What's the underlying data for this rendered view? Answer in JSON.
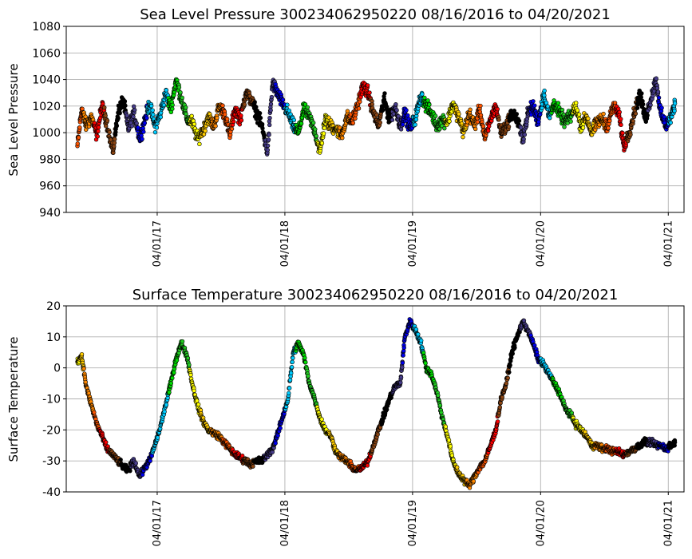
{
  "chart_data": [
    {
      "type": "scatter",
      "title": "Sea Level Pressure 300234062950220  08/16/2016 to 04/20/2021",
      "ylabel": "Sea Level Pressure",
      "xlabel": "",
      "ylim": [
        940,
        1080
      ],
      "yticks": [
        940,
        960,
        980,
        1000,
        1020,
        1040,
        1060,
        1080
      ],
      "xlim": [
        "2016-07-15",
        "2021-05-16"
      ],
      "xticks": [
        "2017-04-01",
        "2018-04-01",
        "2019-04-01",
        "2020-04-01",
        "2021-04-01"
      ],
      "xticklabels": [
        "04/01/17",
        "04/01/18",
        "04/01/19",
        "04/01/20",
        "04/01/21"
      ],
      "grid": true,
      "legend": "none",
      "color_note": "points colored by month",
      "month_colors": [
        "#0000ee",
        "#00ccff",
        "#00dd00",
        "#22cc22",
        "#ffff00",
        "#ffcc00",
        "#ff8800",
        "#ff5500",
        "#ff0000",
        "#8b4513",
        "#000000",
        "#483d8b"
      ],
      "series": [
        {
          "name": "",
          "x": [
            "2016-08-16",
            "2016-08-28",
            "2016-09-10",
            "2016-09-25",
            "2016-10-10",
            "2016-10-25",
            "2016-11-08",
            "2016-11-25",
            "2016-12-10",
            "2016-12-25",
            "2017-01-08",
            "2017-01-25",
            "2017-02-10",
            "2017-02-25",
            "2017-03-10",
            "2017-03-25",
            "2017-04-08",
            "2017-04-25",
            "2017-05-10",
            "2017-05-25",
            "2017-06-10",
            "2017-06-25",
            "2017-07-10",
            "2017-07-25",
            "2017-08-10",
            "2017-08-25",
            "2017-09-10",
            "2017-09-25",
            "2017-10-10",
            "2017-10-25",
            "2017-11-10",
            "2017-11-25",
            "2017-12-10",
            "2017-12-25",
            "2018-01-10",
            "2018-01-25",
            "2018-02-10",
            "2018-02-25",
            "2018-03-10",
            "2018-03-25",
            "2018-04-10",
            "2018-04-25",
            "2018-05-10",
            "2018-05-25",
            "2018-06-10",
            "2018-06-25",
            "2018-07-10",
            "2018-07-25",
            "2018-08-10",
            "2018-08-25",
            "2018-09-10",
            "2018-09-25",
            "2018-10-10",
            "2018-10-25",
            "2018-11-10",
            "2018-11-25",
            "2018-12-10",
            "2018-12-25",
            "2019-01-10",
            "2019-01-25",
            "2019-02-10",
            "2019-02-25",
            "2019-03-10",
            "2019-03-25",
            "2019-04-10",
            "2019-04-25",
            "2019-05-10",
            "2019-05-25",
            "2019-06-10",
            "2019-06-25",
            "2019-07-10",
            "2019-07-25",
            "2019-08-10",
            "2019-08-25",
            "2019-09-10",
            "2019-09-25",
            "2019-10-10",
            "2019-10-25",
            "2019-11-10",
            "2019-11-25",
            "2019-12-10",
            "2019-12-25",
            "2020-01-10",
            "2020-01-25",
            "2020-02-10",
            "2020-02-25",
            "2020-03-10",
            "2020-03-25",
            "2020-04-10",
            "2020-04-25",
            "2020-05-10",
            "2020-05-25",
            "2020-06-10",
            "2020-06-25",
            "2020-07-10",
            "2020-07-25",
            "2020-08-10",
            "2020-08-25",
            "2020-09-10",
            "2020-09-25",
            "2020-10-10",
            "2020-10-25",
            "2020-11-10",
            "2020-11-25",
            "2020-12-10",
            "2020-12-25",
            "2021-01-10",
            "2021-01-25",
            "2021-02-10",
            "2021-02-25",
            "2021-03-10",
            "2021-03-25",
            "2021-04-10",
            "2021-04-20"
          ],
          "y": [
            990,
            1018,
            1005,
            1012,
            998,
            1020,
            1008,
            985,
            1015,
            1025,
            1003,
            1015,
            995,
            1010,
            1022,
            1005,
            1012,
            1030,
            1018,
            1040,
            1025,
            1010,
            1008,
            995,
            1002,
            1012,
            1005,
            1020,
            1015,
            998,
            1018,
            1010,
            1030,
            1025,
            1015,
            1005,
            985,
            1038,
            1030,
            1022,
            1015,
            1005,
            1000,
            1018,
            1012,
            1002,
            985,
            1010,
            1005,
            1003,
            998,
            1012,
            1008,
            1020,
            1035,
            1030,
            1015,
            1005,
            1025,
            1010,
            1020,
            1005,
            1015,
            1003,
            1012,
            1028,
            1020,
            1015,
            1005,
            1010,
            1008,
            1022,
            1012,
            1000,
            1015,
            1005,
            1018,
            995,
            1010,
            1020,
            1000,
            1005,
            1015,
            1010,
            995,
            1015,
            1020,
            1008,
            1030,
            1012,
            1022,
            1015,
            1008,
            1012,
            1020,
            1005,
            1012,
            1000,
            1008,
            1010,
            1005,
            1020,
            1015,
            990,
            1000,
            1015,
            1030,
            1010,
            1025,
            1040,
            1015,
            1005,
            1012,
            1022
          ],
          "month_color_index": [
            7,
            7,
            6,
            6,
            8,
            8,
            9,
            9,
            10,
            10,
            11,
            11,
            0,
            0,
            1,
            1,
            1,
            1,
            2,
            2,
            3,
            3,
            4,
            4,
            5,
            5,
            6,
            6,
            7,
            7,
            8,
            8,
            9,
            9,
            10,
            10,
            11,
            11,
            0,
            0,
            1,
            1,
            2,
            2,
            3,
            3,
            4,
            4,
            5,
            5,
            6,
            6,
            7,
            7,
            8,
            8,
            9,
            9,
            10,
            10,
            11,
            11,
            0,
            0,
            1,
            1,
            2,
            2,
            3,
            3,
            4,
            4,
            5,
            5,
            6,
            6,
            7,
            7,
            8,
            8,
            9,
            9,
            10,
            10,
            11,
            11,
            0,
            0,
            1,
            1,
            2,
            2,
            3,
            3,
            4,
            4,
            5,
            5,
            6,
            6,
            7,
            7,
            8,
            8,
            9,
            9,
            10,
            10,
            11,
            11,
            0,
            0,
            1,
            1
          ]
        }
      ]
    },
    {
      "type": "scatter",
      "title": "Surface Temperature 300234062950220  08/16/2016 to 04/20/2021",
      "ylabel": "Surface Temperature",
      "xlabel": "",
      "ylim": [
        -40,
        20
      ],
      "yticks": [
        -40,
        -30,
        -20,
        -10,
        0,
        10,
        20
      ],
      "xlim": [
        "2016-07-15",
        "2021-05-16"
      ],
      "xticks": [
        "2017-04-01",
        "2018-04-01",
        "2019-04-01",
        "2020-04-01",
        "2021-04-01"
      ],
      "xticklabels": [
        "04/01/17",
        "04/01/18",
        "04/01/19",
        "04/01/20",
        "04/01/21"
      ],
      "grid": true,
      "legend": "none",
      "color_note": "points colored by month",
      "series": [
        {
          "name": "",
          "x": [
            "2016-08-16",
            "2016-08-28",
            "2016-09-10",
            "2016-09-25",
            "2016-10-10",
            "2016-10-25",
            "2016-11-08",
            "2016-11-25",
            "2016-12-10",
            "2016-12-25",
            "2017-01-08",
            "2017-01-25",
            "2017-02-10",
            "2017-02-25",
            "2017-03-10",
            "2017-03-25",
            "2017-04-08",
            "2017-04-25",
            "2017-05-10",
            "2017-05-25",
            "2017-06-10",
            "2017-06-25",
            "2017-07-10",
            "2017-07-25",
            "2017-08-10",
            "2017-08-25",
            "2017-09-10",
            "2017-09-25",
            "2017-10-10",
            "2017-10-25",
            "2017-11-10",
            "2017-11-25",
            "2017-12-10",
            "2017-12-25",
            "2018-01-10",
            "2018-01-25",
            "2018-02-10",
            "2018-02-25",
            "2018-03-10",
            "2018-03-25",
            "2018-04-10",
            "2018-04-25",
            "2018-05-10",
            "2018-05-25",
            "2018-06-10",
            "2018-06-25",
            "2018-07-10",
            "2018-07-25",
            "2018-08-10",
            "2018-08-25",
            "2018-09-10",
            "2018-09-25",
            "2018-10-10",
            "2018-10-25",
            "2018-11-10",
            "2018-11-25",
            "2018-12-10",
            "2018-12-25",
            "2019-01-10",
            "2019-01-25",
            "2019-02-10",
            "2019-02-25",
            "2019-03-10",
            "2019-03-25",
            "2019-04-10",
            "2019-04-25",
            "2019-05-10",
            "2019-05-25",
            "2019-06-10",
            "2019-06-25",
            "2019-07-10",
            "2019-07-25",
            "2019-08-10",
            "2019-08-25",
            "2019-09-10",
            "2019-09-25",
            "2019-10-10",
            "2019-10-25",
            "2019-11-10",
            "2019-11-25",
            "2019-12-10",
            "2019-12-25",
            "2020-01-10",
            "2020-01-25",
            "2020-02-10",
            "2020-02-25",
            "2020-03-10",
            "2020-03-25",
            "2020-04-10",
            "2020-04-25",
            "2020-05-10",
            "2020-05-25",
            "2020-06-10",
            "2020-06-25",
            "2020-07-10",
            "2020-07-25",
            "2020-08-10",
            "2020-08-25",
            "2020-09-10",
            "2020-09-25",
            "2020-10-10",
            "2020-10-25",
            "2020-11-10",
            "2020-11-25",
            "2020-12-10",
            "2020-12-25",
            "2021-01-10",
            "2021-01-25",
            "2021-02-10",
            "2021-02-25",
            "2021-03-10",
            "2021-03-25",
            "2021-04-10",
            "2021-04-20"
          ],
          "y": [
            2,
            4,
            -6,
            -12,
            -18,
            -22,
            -26,
            -28,
            -30,
            -32,
            -33,
            -30,
            -35,
            -32,
            -30,
            -25,
            -20,
            -12,
            -5,
            3,
            8,
            4,
            -5,
            -12,
            -17,
            -20,
            -21,
            -22,
            -24,
            -26,
            -28,
            -29,
            -30,
            -31,
            -30,
            -30,
            -28,
            -26,
            -22,
            -16,
            -10,
            5,
            8,
            4,
            -5,
            -10,
            -16,
            -20,
            -22,
            -27,
            -29,
            -30,
            -32,
            -33,
            -32,
            -30,
            -25,
            -20,
            -15,
            -10,
            -6,
            -5,
            10,
            15,
            12,
            8,
            0,
            -2,
            -8,
            -16,
            -22,
            -30,
            -34,
            -36,
            -38,
            -35,
            -32,
            -30,
            -25,
            -20,
            -10,
            -5,
            5,
            10,
            15,
            12,
            8,
            3,
            1,
            -2,
            -5,
            -8,
            -13,
            -15,
            -18,
            -20,
            -22,
            -25,
            -25,
            -26,
            -26,
            -27,
            -27,
            -28,
            -27,
            -26,
            -25,
            -24,
            -24,
            -25,
            -25,
            -26,
            -25,
            -24
          ],
          "month_color_index": [
            4,
            5,
            6,
            6,
            7,
            8,
            8,
            9,
            9,
            10,
            10,
            11,
            11,
            0,
            0,
            1,
            1,
            1,
            2,
            2,
            3,
            3,
            4,
            4,
            5,
            5,
            6,
            6,
            7,
            7,
            8,
            8,
            9,
            9,
            10,
            10,
            11,
            11,
            0,
            0,
            1,
            1,
            2,
            2,
            3,
            3,
            4,
            4,
            5,
            5,
            6,
            6,
            7,
            7,
            8,
            8,
            9,
            9,
            10,
            10,
            11,
            11,
            0,
            0,
            1,
            1,
            2,
            2,
            3,
            3,
            4,
            4,
            5,
            5,
            6,
            6,
            7,
            7,
            8,
            8,
            9,
            9,
            10,
            10,
            11,
            11,
            0,
            0,
            1,
            1,
            2,
            2,
            3,
            3,
            4,
            4,
            5,
            5,
            6,
            6,
            7,
            7,
            8,
            8,
            9,
            9,
            10,
            10,
            11,
            11,
            0,
            0
          ]
        }
      ]
    }
  ]
}
